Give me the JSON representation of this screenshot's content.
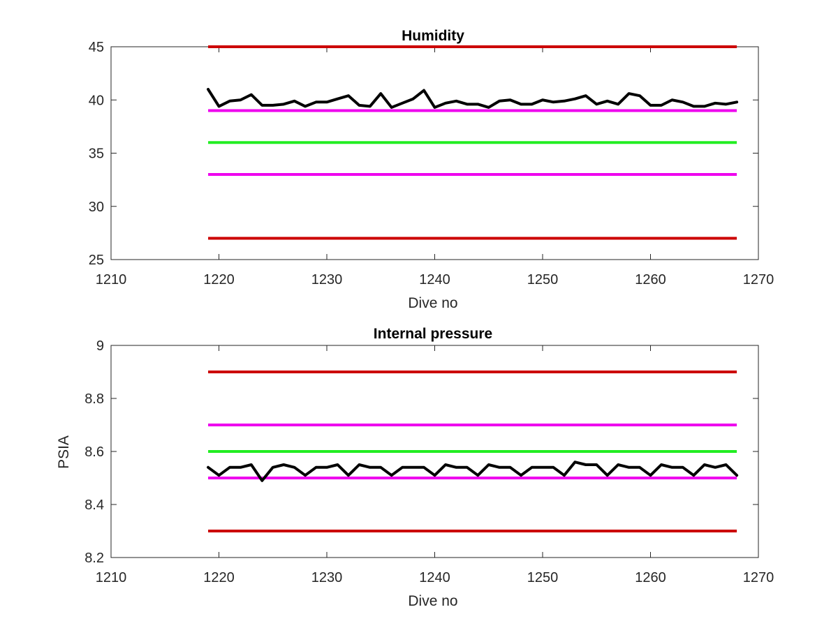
{
  "colors": {
    "red_limit": "#cc0000",
    "magenta_limit": "#ee00ee",
    "green_target": "#22ee22",
    "data_line": "#000000",
    "axes": "#262626",
    "background": "#ffffff"
  },
  "chart_data": [
    {
      "type": "line",
      "title": "Humidity",
      "xlabel": "Dive no",
      "ylabel": "",
      "xlim": [
        1210,
        1270
      ],
      "ylim": [
        25,
        45
      ],
      "xticks": [
        1210,
        1220,
        1230,
        1240,
        1250,
        1260,
        1270
      ],
      "yticks": [
        25,
        30,
        35,
        40,
        45
      ],
      "xtick_labels": [
        "1210",
        "1220",
        "1230",
        "1240",
        "1250",
        "1260",
        "1270"
      ],
      "ytick_labels": [
        "25",
        "30",
        "35",
        "40",
        "45"
      ],
      "grid": false,
      "reference_lines": [
        {
          "y": 45,
          "x": [
            1219,
            1268
          ],
          "color": "red"
        },
        {
          "y": 39,
          "x": [
            1219,
            1268
          ],
          "color": "magenta"
        },
        {
          "y": 36,
          "x": [
            1219,
            1268
          ],
          "color": "green"
        },
        {
          "y": 33,
          "x": [
            1219,
            1268
          ],
          "color": "magenta"
        },
        {
          "y": 27,
          "x": [
            1219,
            1268
          ],
          "color": "red"
        }
      ],
      "series": [
        {
          "color": "black",
          "x": [
            1219,
            1220,
            1221,
            1222,
            1223,
            1224,
            1225,
            1226,
            1227,
            1228,
            1229,
            1230,
            1231,
            1232,
            1233,
            1234,
            1235,
            1236,
            1237,
            1238,
            1239,
            1240,
            1241,
            1242,
            1243,
            1244,
            1245,
            1246,
            1247,
            1248,
            1249,
            1250,
            1251,
            1252,
            1253,
            1254,
            1255,
            1256,
            1257,
            1258,
            1259,
            1260,
            1261,
            1262,
            1263,
            1264,
            1265,
            1266,
            1267,
            1268
          ],
          "values": [
            41.0,
            39.4,
            39.9,
            40.0,
            40.5,
            39.5,
            39.5,
            39.6,
            39.9,
            39.4,
            39.8,
            39.8,
            40.1,
            40.4,
            39.5,
            39.4,
            40.6,
            39.3,
            39.7,
            40.1,
            40.9,
            39.3,
            39.7,
            39.9,
            39.6,
            39.6,
            39.3,
            39.9,
            40.0,
            39.6,
            39.6,
            40.0,
            39.8,
            39.9,
            40.1,
            40.4,
            39.6,
            39.9,
            39.6,
            40.6,
            40.4,
            39.5,
            39.5,
            40.0,
            39.8,
            39.4,
            39.4,
            39.7,
            39.6,
            39.8
          ]
        }
      ]
    },
    {
      "type": "line",
      "title": "Internal pressure",
      "xlabel": "Dive no",
      "ylabel": "PSIA",
      "xlim": [
        1210,
        1270
      ],
      "ylim": [
        8.2,
        9.0
      ],
      "xticks": [
        1210,
        1220,
        1230,
        1240,
        1250,
        1260,
        1270
      ],
      "yticks": [
        8.2,
        8.4,
        8.6,
        8.8,
        9.0
      ],
      "xtick_labels": [
        "1210",
        "1220",
        "1230",
        "1240",
        "1250",
        "1260",
        "1270"
      ],
      "ytick_labels": [
        "8.2",
        "8.4",
        "8.6",
        "8.8",
        "9"
      ],
      "grid": false,
      "reference_lines": [
        {
          "y": 8.9,
          "x": [
            1219,
            1268
          ],
          "color": "red"
        },
        {
          "y": 8.7,
          "x": [
            1219,
            1268
          ],
          "color": "magenta"
        },
        {
          "y": 8.6,
          "x": [
            1219,
            1268
          ],
          "color": "green"
        },
        {
          "y": 8.5,
          "x": [
            1219,
            1268
          ],
          "color": "magenta"
        },
        {
          "y": 8.3,
          "x": [
            1219,
            1268
          ],
          "color": "red"
        }
      ],
      "series": [
        {
          "color": "black",
          "x": [
            1219,
            1220,
            1221,
            1222,
            1223,
            1224,
            1225,
            1226,
            1227,
            1228,
            1229,
            1230,
            1231,
            1232,
            1233,
            1234,
            1235,
            1236,
            1237,
            1238,
            1239,
            1240,
            1241,
            1242,
            1243,
            1244,
            1245,
            1246,
            1247,
            1248,
            1249,
            1250,
            1251,
            1252,
            1253,
            1254,
            1255,
            1256,
            1257,
            1258,
            1259,
            1260,
            1261,
            1262,
            1263,
            1264,
            1265,
            1266,
            1267,
            1268
          ],
          "values": [
            8.54,
            8.51,
            8.54,
            8.54,
            8.55,
            8.49,
            8.54,
            8.55,
            8.54,
            8.51,
            8.54,
            8.54,
            8.55,
            8.51,
            8.55,
            8.54,
            8.54,
            8.51,
            8.54,
            8.54,
            8.54,
            8.51,
            8.55,
            8.54,
            8.54,
            8.51,
            8.55,
            8.54,
            8.54,
            8.51,
            8.54,
            8.54,
            8.54,
            8.51,
            8.56,
            8.55,
            8.55,
            8.51,
            8.55,
            8.54,
            8.54,
            8.51,
            8.55,
            8.54,
            8.54,
            8.51,
            8.55,
            8.54,
            8.55,
            8.51
          ]
        }
      ]
    }
  ]
}
